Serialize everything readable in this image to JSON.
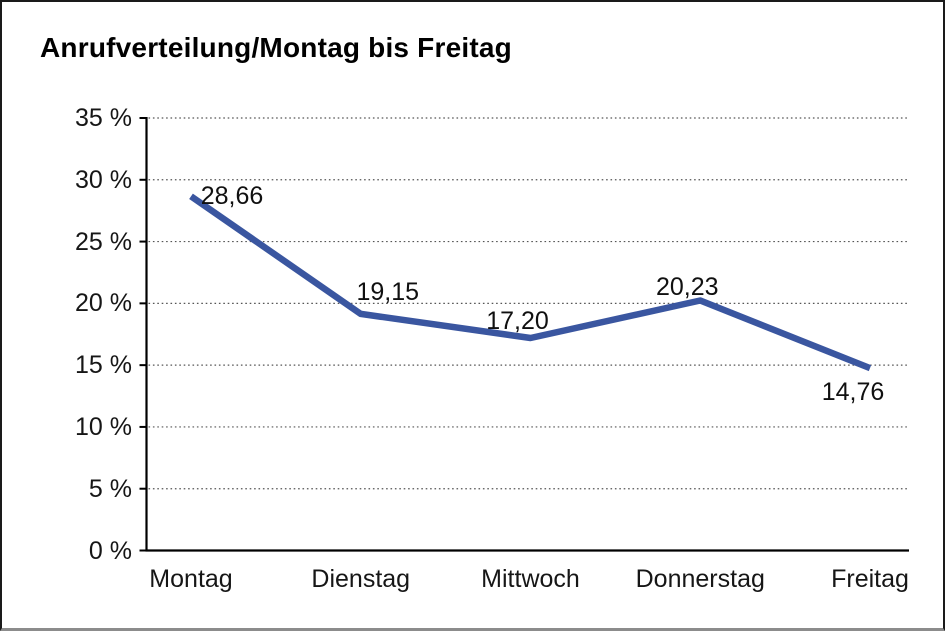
{
  "title": "Anrufverteilung/Montag bis Freitag",
  "chart_data": {
    "type": "line",
    "title": "Anrufverteilung/Montag bis Freitag",
    "categories": [
      "Montag",
      "Dienstag",
      "Mittwoch",
      "Donnerstag",
      "Freitag"
    ],
    "values": [
      28.66,
      19.15,
      17.2,
      20.23,
      14.76
    ],
    "point_labels": [
      "28,66",
      "19,15",
      "17,20",
      "20,23",
      "14,76"
    ],
    "ytick_labels": [
      "35 %",
      "30 %",
      "25 %",
      "20 %",
      "15 %",
      "10 %",
      "5 %",
      "0 %"
    ],
    "ylim": [
      0,
      35
    ],
    "ytick_step": 5,
    "xlabel": "",
    "ylabel": "",
    "grid": "horizontal-dotted",
    "legend": "none",
    "decimal_separator": ",",
    "colors": {
      "line": "#3A56A0",
      "axis": "#000000",
      "gridline": "#565656",
      "text": "#161616"
    }
  }
}
